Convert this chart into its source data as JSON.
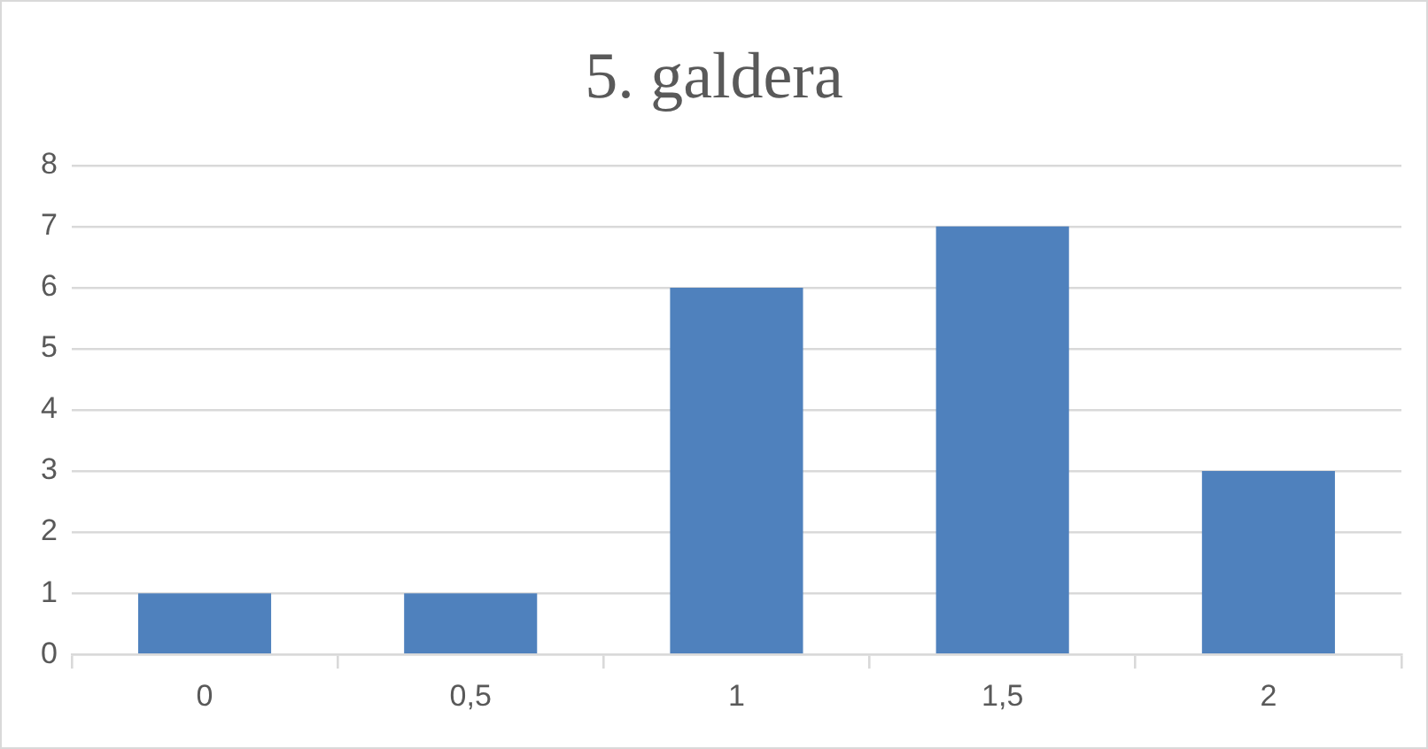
{
  "chart_data": {
    "type": "bar",
    "title": "5. galdera",
    "categories": [
      "0",
      "0,5",
      "1",
      "1,5",
      "2"
    ],
    "values": [
      1,
      1,
      6,
      7,
      3
    ],
    "color": "#4f81bd",
    "ylim": [
      0,
      8
    ],
    "yticks": [
      0,
      1,
      2,
      3,
      4,
      5,
      6,
      7,
      8
    ],
    "grid": "y"
  }
}
